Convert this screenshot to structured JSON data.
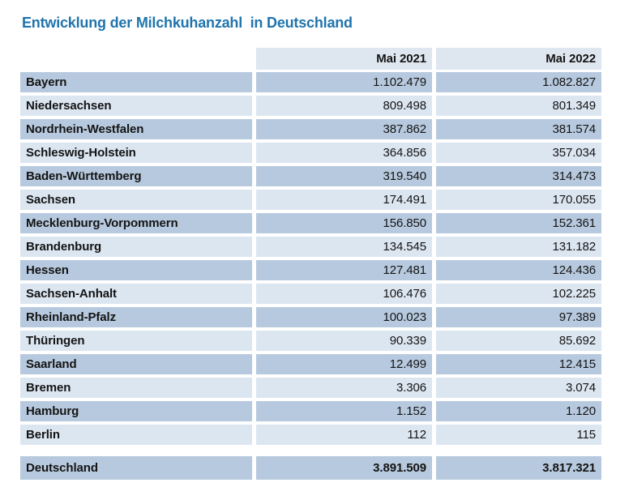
{
  "title": "Entwicklung der Milchkuhanzahl  in Deutschland",
  "colors": {
    "title_blue": "#1F74AD",
    "row_dark": "#B7C9DE",
    "row_light": "#DCE6F1",
    "header_fill": "#DEE6EF",
    "text": "#141414",
    "background": "#FFFFFF"
  },
  "table": {
    "columns": [
      "",
      "Mai 2021",
      "Mai 2022"
    ],
    "rows": [
      {
        "label": "Bayern",
        "mai_2021": "1.102.479",
        "mai_2022": "1.082.827"
      },
      {
        "label": "Niedersachsen",
        "mai_2021": "809.498",
        "mai_2022": "801.349"
      },
      {
        "label": "Nordrhein-Westfalen",
        "mai_2021": "387.862",
        "mai_2022": "381.574"
      },
      {
        "label": "Schleswig-Holstein",
        "mai_2021": "364.856",
        "mai_2022": "357.034"
      },
      {
        "label": "Baden-Württemberg",
        "mai_2021": "319.540",
        "mai_2022": "314.473"
      },
      {
        "label": "Sachsen",
        "mai_2021": "174.491",
        "mai_2022": "170.055"
      },
      {
        "label": "Mecklenburg-Vorpommern",
        "mai_2021": "156.850",
        "mai_2022": "152.361"
      },
      {
        "label": "Brandenburg",
        "mai_2021": "134.545",
        "mai_2022": "131.182"
      },
      {
        "label": "Hessen",
        "mai_2021": "127.481",
        "mai_2022": "124.436"
      },
      {
        "label": "Sachsen-Anhalt",
        "mai_2021": "106.476",
        "mai_2022": "102.225"
      },
      {
        "label": "Rheinland-Pfalz",
        "mai_2021": "100.023",
        "mai_2022": "97.389"
      },
      {
        "label": "Thüringen",
        "mai_2021": "90.339",
        "mai_2022": "85.692"
      },
      {
        "label": "Saarland",
        "mai_2021": "12.499",
        "mai_2022": "12.415"
      },
      {
        "label": "Bremen",
        "mai_2021": "3.306",
        "mai_2022": "3.074"
      },
      {
        "label": "Hamburg",
        "mai_2021": "1.152",
        "mai_2022": "1.120"
      },
      {
        "label": "Berlin",
        "mai_2021": "112",
        "mai_2022": "115"
      }
    ],
    "total": {
      "label": "Deutschland",
      "mai_2021": "3.891.509",
      "mai_2022": "3.817.321"
    }
  },
  "chart_data": {
    "type": "table",
    "title": "Entwicklung der Milchkuhanzahl in Deutschland",
    "columns": [
      "Mai 2021",
      "Mai 2022"
    ],
    "categories": [
      "Bayern",
      "Niedersachsen",
      "Nordrhein-Westfalen",
      "Schleswig-Holstein",
      "Baden-Württemberg",
      "Sachsen",
      "Mecklenburg-Vorpommern",
      "Brandenburg",
      "Hessen",
      "Sachsen-Anhalt",
      "Rheinland-Pfalz",
      "Thüringen",
      "Saarland",
      "Bremen",
      "Hamburg",
      "Berlin"
    ],
    "series": [
      {
        "name": "Mai 2021",
        "values": [
          1102479,
          809498,
          387862,
          364856,
          319540,
          174491,
          156850,
          134545,
          127481,
          106476,
          100023,
          90339,
          12499,
          3306,
          1152,
          112
        ]
      },
      {
        "name": "Mai 2022",
        "values": [
          1082827,
          801349,
          381574,
          357034,
          314473,
          170055,
          152361,
          131182,
          124436,
          102225,
          97389,
          85692,
          12415,
          3074,
          1120,
          115
        ]
      }
    ],
    "total": {
      "name": "Deutschland",
      "values": [
        3891509,
        3817321
      ]
    },
    "number_format": "de-DE thousands separator '.'"
  }
}
